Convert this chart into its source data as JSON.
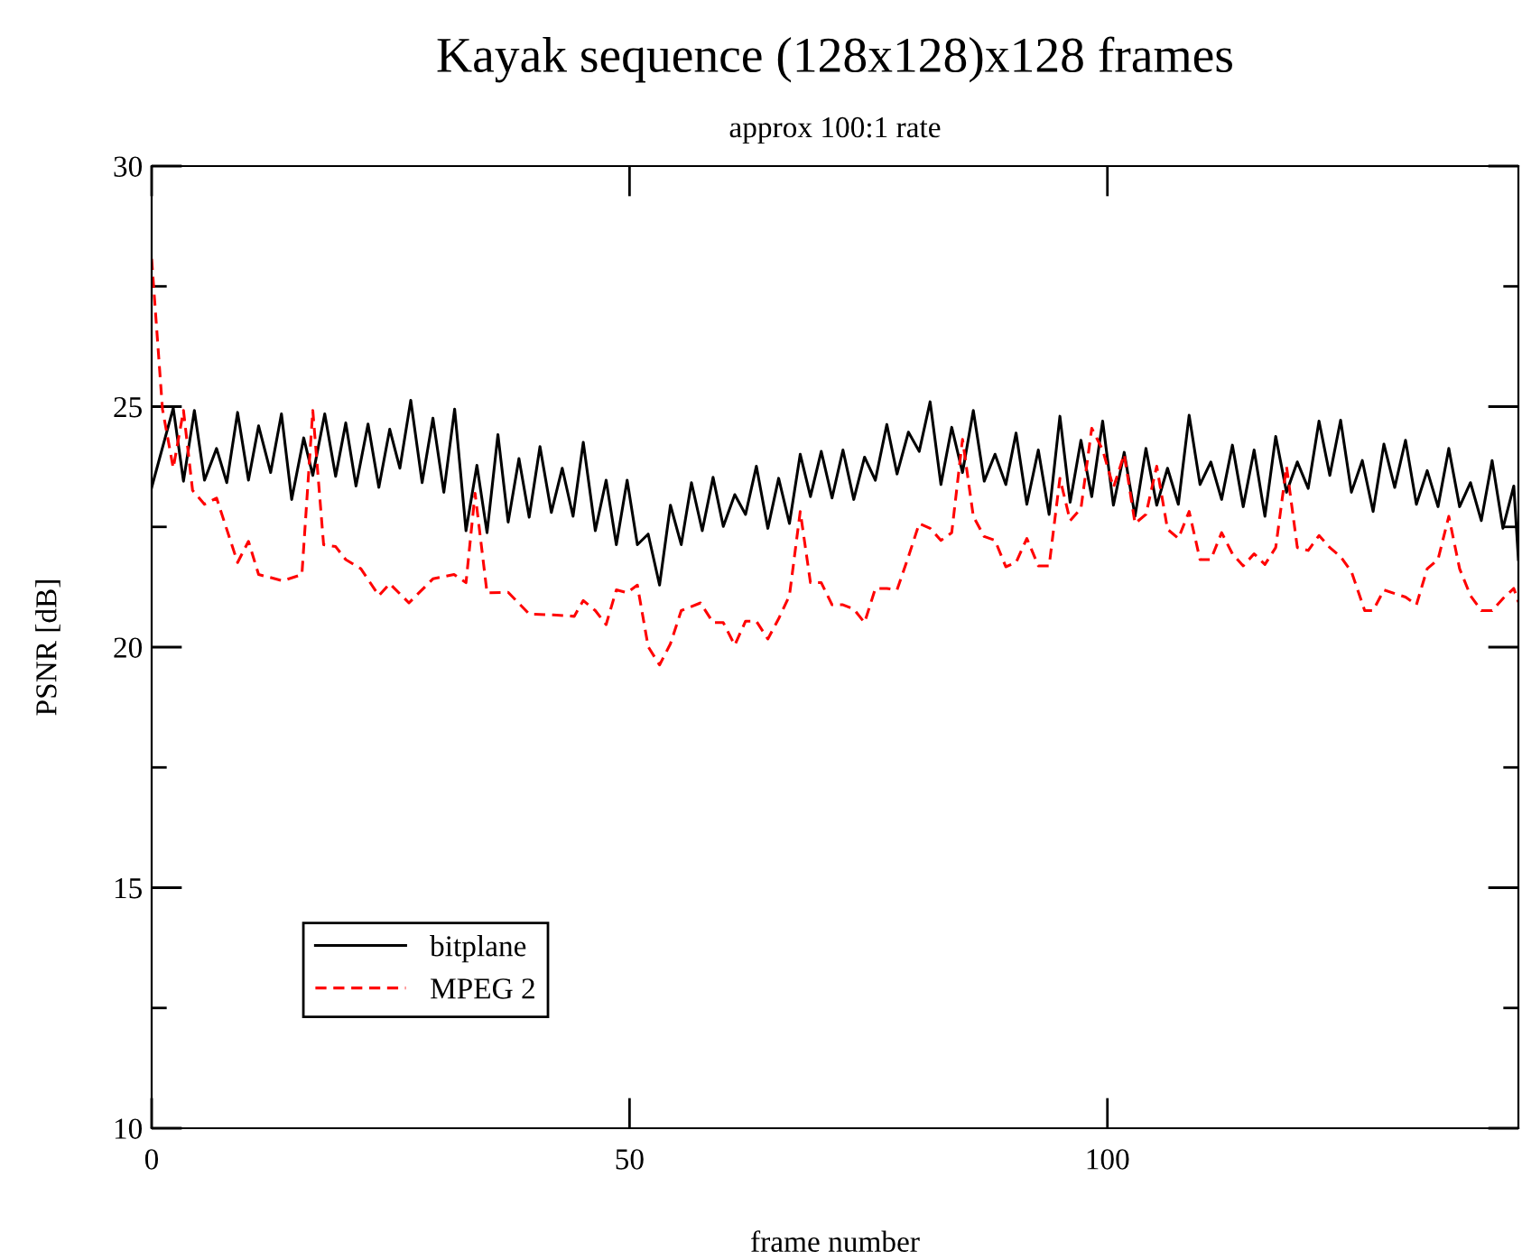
{
  "chart_data": {
    "type": "line",
    "title": "Kayak sequence (128x128)x128 frames",
    "subtitle": "approx 100:1 rate",
    "xlabel": "frame number",
    "ylabel": "PSNR [dB]",
    "xlim": [
      0,
      143
    ],
    "xticks": [
      0,
      50,
      100
    ],
    "ylim": [
      10,
      30
    ],
    "yticks": [
      10,
      {
        "value": 12.5,
        "label": null
      },
      15,
      {
        "value": 17.5,
        "label": null
      },
      20,
      {
        "value": 22.5,
        "label": null
      },
      25,
      {
        "value": 27.5,
        "label": null
      },
      30
    ],
    "grid": false,
    "legend": "bottom left",
    "marker": "none",
    "series": [
      {
        "name": "bitplane",
        "color": "#000000",
        "line_style": "solid",
        "x": [
          0.0,
          2.26,
          3.33,
          4.47,
          5.53,
          6.79,
          7.86,
          8.99,
          10.13,
          11.19,
          12.45,
          13.58,
          14.65,
          15.91,
          16.86,
          18.11,
          19.25,
          20.31,
          21.38,
          22.64,
          23.77,
          24.91,
          25.97,
          27.11,
          28.3,
          29.43,
          30.57,
          31.7,
          32.89,
          34.03,
          35.09,
          36.23,
          37.3,
          38.43,
          39.5,
          40.63,
          41.82,
          42.96,
          44.09,
          45.16,
          46.42,
          47.55,
          48.62,
          49.75,
          50.82,
          51.95,
          53.14,
          54.28,
          55.41,
          56.48,
          57.61,
          58.74,
          59.81,
          61.01,
          62.14,
          63.27,
          64.47,
          65.6,
          66.73,
          67.86,
          68.93,
          70.06,
          71.19,
          72.33,
          73.46,
          74.59,
          75.72,
          76.92,
          77.99,
          79.18,
          80.31,
          81.45,
          82.58,
          83.71,
          84.84,
          85.97,
          87.11,
          88.24,
          89.37,
          90.44,
          91.57,
          92.77,
          93.9,
          95.03,
          96.1,
          97.23,
          98.36,
          99.5,
          100.63,
          101.76,
          102.89,
          104.03,
          105.16,
          106.29,
          107.42,
          108.55,
          109.69,
          110.82,
          111.95,
          113.08,
          114.21,
          115.35,
          116.48,
          117.61,
          118.74,
          119.87,
          121.01,
          122.14,
          123.27,
          124.4,
          125.53,
          126.67,
          127.8,
          128.93,
          130.06,
          131.19,
          132.33,
          133.46,
          134.59,
          135.72,
          136.85,
          137.99,
          139.12,
          140.25,
          141.38,
          142.52,
          143.0
        ],
        "values": [
          23.32,
          24.97,
          23.45,
          24.92,
          23.47,
          24.13,
          23.42,
          24.88,
          23.47,
          24.6,
          23.63,
          24.85,
          23.07,
          24.35,
          23.57,
          24.85,
          23.55,
          24.66,
          23.35,
          24.64,
          23.32,
          24.53,
          23.72,
          25.13,
          23.42,
          24.76,
          23.22,
          24.95,
          22.42,
          23.78,
          22.38,
          24.42,
          22.6,
          23.92,
          22.7,
          24.17,
          22.8,
          23.72,
          22.72,
          24.26,
          22.42,
          23.47,
          22.13,
          23.47,
          22.13,
          22.35,
          21.29,
          22.95,
          22.13,
          23.42,
          22.42,
          23.53,
          22.51,
          23.17,
          22.76,
          23.76,
          22.47,
          23.51,
          22.57,
          24.01,
          23.13,
          24.07,
          23.1,
          24.1,
          23.07,
          23.95,
          23.47,
          24.63,
          23.6,
          24.47,
          24.07,
          25.1,
          23.38,
          24.57,
          23.63,
          24.92,
          23.45,
          24.01,
          23.38,
          24.45,
          22.97,
          24.1,
          22.76,
          24.8,
          23.01,
          24.3,
          23.13,
          24.7,
          22.95,
          24.05,
          22.72,
          24.13,
          22.95,
          23.72,
          22.97,
          24.82,
          23.38,
          23.85,
          23.07,
          24.2,
          22.92,
          24.1,
          22.72,
          24.38,
          23.22,
          23.85,
          23.3,
          24.7,
          23.57,
          24.72,
          23.22,
          23.88,
          22.82,
          24.22,
          23.32,
          24.3,
          22.97,
          23.67,
          22.92,
          24.13,
          22.92,
          23.42,
          22.63,
          23.88,
          22.47,
          23.35,
          21.82
        ]
      },
      {
        "name": "MPEG 2",
        "color": "#ff0000",
        "line_style": "dashed",
        "x": [
          0.0,
          1.13,
          2.26,
          3.33,
          4.28,
          5.53,
          6.79,
          8.99,
          10.13,
          11.19,
          13.71,
          15.72,
          16.86,
          17.99,
          19.25,
          20.31,
          21.89,
          23.77,
          24.91,
          26.92,
          29.43,
          31.64,
          32.89,
          33.84,
          35.09,
          37.3,
          39.5,
          42.01,
          44.21,
          45.16,
          46.42,
          47.55,
          48.62,
          49.75,
          50.82,
          51.95,
          53.14,
          54.28,
          55.41,
          57.42,
          58.74,
          59.81,
          61.01,
          62.14,
          63.27,
          64.47,
          65.6,
          66.73,
          67.86,
          68.93,
          70.06,
          71.19,
          72.33,
          73.46,
          74.59,
          75.72,
          76.92,
          77.99,
          79.18,
          80.31,
          81.45,
          82.58,
          83.71,
          84.84,
          85.97,
          87.11,
          88.24,
          89.37,
          90.44,
          91.57,
          92.77,
          93.9,
          95.03,
          96.1,
          97.23,
          98.36,
          99.5,
          100.63,
          101.76,
          102.89,
          104.03,
          105.16,
          106.29,
          107.42,
          108.55,
          109.69,
          110.82,
          111.95,
          113.08,
          114.21,
          115.35,
          116.48,
          117.61,
          118.74,
          119.87,
          121.01,
          122.14,
          123.27,
          124.4,
          125.53,
          126.92,
          127.8,
          128.93,
          131.19,
          132.33,
          133.46,
          134.59,
          135.72,
          136.85,
          137.99,
          139.12,
          140.25,
          141.38,
          142.52,
          143.0
        ],
        "values": [
          28.07,
          24.95,
          23.72,
          24.92,
          23.26,
          22.97,
          23.1,
          21.76,
          22.2,
          21.51,
          21.38,
          21.51,
          24.92,
          22.13,
          22.09,
          21.82,
          21.63,
          21.07,
          21.32,
          20.92,
          21.42,
          21.51,
          21.34,
          23.2,
          21.13,
          21.14,
          20.69,
          20.67,
          20.64,
          20.97,
          20.76,
          20.47,
          21.19,
          21.13,
          21.29,
          20.01,
          19.63,
          20.07,
          20.76,
          20.92,
          20.51,
          20.51,
          20.04,
          20.54,
          20.54,
          20.17,
          20.59,
          21.07,
          22.82,
          21.34,
          21.34,
          20.88,
          20.88,
          20.79,
          20.51,
          21.22,
          21.22,
          21.19,
          21.88,
          22.57,
          22.47,
          22.22,
          22.38,
          24.32,
          22.72,
          22.3,
          22.22,
          21.67,
          21.76,
          22.26,
          21.69,
          21.69,
          23.51,
          22.63,
          22.88,
          24.55,
          24.1,
          23.32,
          24.01,
          22.57,
          22.76,
          23.76,
          22.45,
          22.26,
          22.82,
          21.82,
          21.82,
          22.38,
          21.94,
          21.69,
          21.94,
          21.72,
          22.07,
          23.76,
          22.07,
          22.01,
          22.32,
          22.07,
          21.88,
          21.57,
          20.76,
          20.76,
          21.19,
          21.04,
          20.88,
          21.63,
          21.82,
          22.72,
          21.63,
          21.07,
          20.76,
          20.76,
          21.01,
          21.22,
          20.94
        ]
      }
    ]
  }
}
